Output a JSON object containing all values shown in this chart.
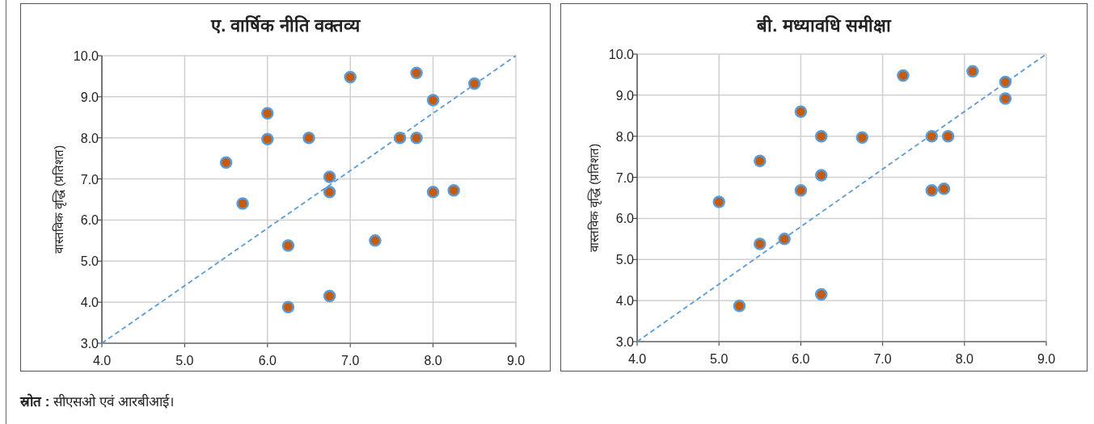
{
  "chart_data": [
    {
      "type": "scatter",
      "title": "ए. वार्षिक नीति वक्तव्य",
      "ylabel": "वास्तविक वृद्धि (प्रतिशत)",
      "xlim": [
        4,
        9
      ],
      "ylim": [
        3,
        10
      ],
      "xticks": [
        {
          "value": 4,
          "label": "4.0"
        },
        {
          "value": 5,
          "label": "5.0"
        },
        {
          "value": 6,
          "label": "6.0"
        },
        {
          "value": 7,
          "label": "7.0"
        },
        {
          "value": 8,
          "label": "8.0"
        },
        {
          "value": 9,
          "label": "9.0"
        }
      ],
      "yticks": [
        {
          "value": 3,
          "label": "3.0"
        },
        {
          "value": 4,
          "label": "4.0"
        },
        {
          "value": 5,
          "label": "5.0"
        },
        {
          "value": 6,
          "label": "6.0"
        },
        {
          "value": 7,
          "label": "7.0"
        },
        {
          "value": 8,
          "label": "8.0"
        },
        {
          "value": 9,
          "label": "9.0"
        },
        {
          "value": 10,
          "label": "10.0"
        }
      ],
      "grid": true,
      "annotations": [
        "स्रोत : सीएसओ एवं आरबीआई।"
      ],
      "series": [
        {
          "type": "line",
          "color": "#5b9bd5",
          "line_style": "dashed",
          "marker": "none",
          "x": [
            4,
            9
          ],
          "values": [
            3,
            10
          ]
        },
        {
          "color": "#c55a11",
          "marker": "circle",
          "x": [
            6.0,
            6.0,
            6.5,
            5.5,
            5.7,
            6.75,
            6.75,
            6.25,
            6.25,
            6.75,
            7.0,
            7.3,
            7.6,
            7.8,
            7.8,
            8.0,
            8.0,
            8.25,
            8.5
          ],
          "values": [
            8.6,
            7.97,
            8.0,
            7.4,
            6.4,
            7.05,
            6.68,
            5.38,
            3.88,
            4.15,
            9.48,
            5.5,
            8.0,
            8.0,
            9.58,
            8.92,
            6.68,
            6.72,
            9.32
          ]
        }
      ]
    },
    {
      "type": "scatter",
      "title": "बी. मध्यावधि समीक्षा",
      "ylabel": "वास्तविक वृद्धि (प्रतिशत)",
      "xlim": [
        4,
        9
      ],
      "ylim": [
        3,
        10
      ],
      "xticks": [
        {
          "value": 4,
          "label": "4.0"
        },
        {
          "value": 5,
          "label": "5.0"
        },
        {
          "value": 6,
          "label": "6.0"
        },
        {
          "value": 7,
          "label": "7.0"
        },
        {
          "value": 8,
          "label": "8.0"
        },
        {
          "value": 9,
          "label": "9.0"
        }
      ],
      "yticks": [
        {
          "value": 3,
          "label": "3.0"
        },
        {
          "value": 4,
          "label": "4.0"
        },
        {
          "value": 5,
          "label": "5.0"
        },
        {
          "value": 6,
          "label": "6.0"
        },
        {
          "value": 7,
          "label": "7.0"
        },
        {
          "value": 8,
          "label": "8.0"
        },
        {
          "value": 9,
          "label": "9.0"
        },
        {
          "value": 10,
          "label": "10.0"
        }
      ],
      "grid": true,
      "series": [
        {
          "type": "line",
          "color": "#5b9bd5",
          "line_style": "dashed",
          "marker": "none",
          "x": [
            4,
            9
          ],
          "values": [
            3,
            10
          ]
        },
        {
          "color": "#c55a11",
          "marker": "circle",
          "x": [
            5.0,
            5.25,
            5.5,
            5.5,
            5.8,
            6.0,
            6.0,
            6.25,
            6.25,
            6.25,
            6.75,
            7.25,
            7.6,
            7.6,
            7.75,
            7.8,
            8.1,
            8.5,
            8.5
          ],
          "values": [
            6.4,
            3.87,
            7.4,
            5.38,
            5.5,
            8.6,
            6.68,
            8.0,
            7.05,
            4.15,
            7.97,
            9.48,
            8.0,
            6.68,
            6.72,
            8.0,
            9.58,
            9.32,
            8.92
          ]
        }
      ]
    }
  ]
}
